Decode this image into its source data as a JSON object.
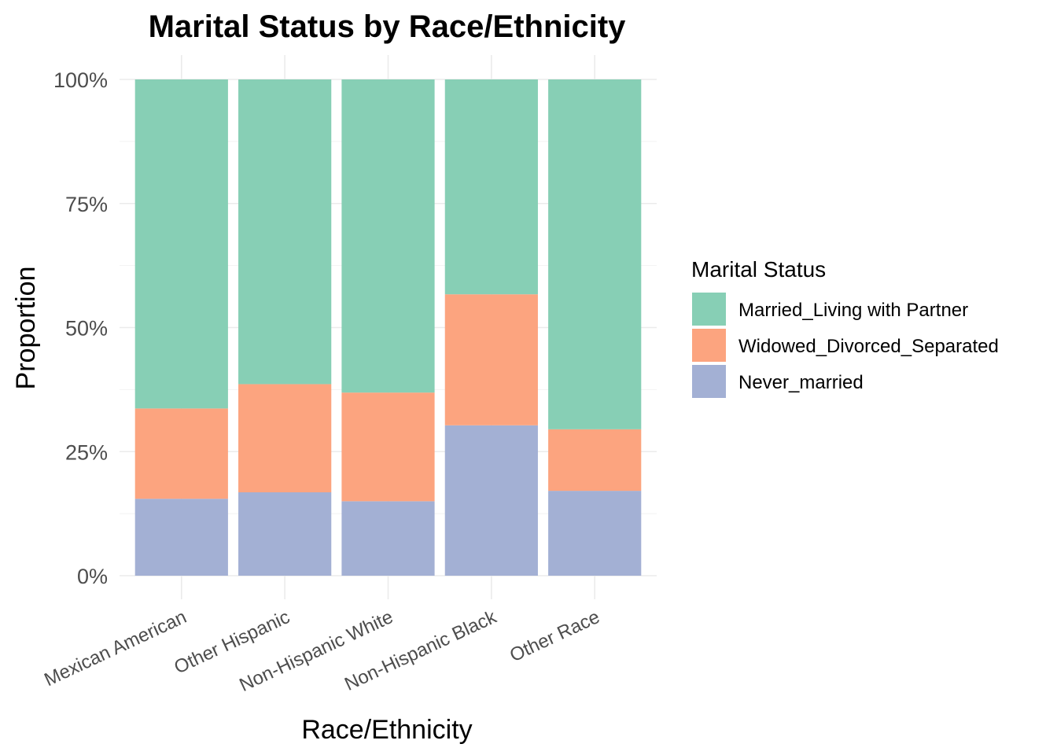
{
  "chart_data": {
    "type": "bar",
    "stacked": true,
    "title": "Marital Status by Race/Ethnicity",
    "xlabel": "Race/Ethnicity",
    "ylabel": "Proportion",
    "ylim": [
      0,
      1
    ],
    "yticks": [
      "0%",
      "25%",
      "50%",
      "75%",
      "100%"
    ],
    "grid": true,
    "legend_position": "right",
    "legend_title": "Marital Status",
    "categories": [
      "Mexican American",
      "Other Hispanic",
      "Non-Hispanic White",
      "Non-Hispanic Black",
      "Other Race"
    ],
    "series": [
      {
        "name": "Never_married",
        "color": "#a3b0d4",
        "values": [
          0.155,
          0.168,
          0.15,
          0.303,
          0.171
        ]
      },
      {
        "name": "Widowed_Divorced_Separated",
        "color": "#fca47f",
        "values": [
          0.182,
          0.218,
          0.219,
          0.264,
          0.124
        ]
      },
      {
        "name": "Married_Living with Partner",
        "color": "#87cfb5",
        "values": [
          0.663,
          0.614,
          0.631,
          0.433,
          0.705
        ]
      }
    ],
    "legend_order": [
      "Married_Living with Partner",
      "Widowed_Divorced_Separated",
      "Never_married"
    ]
  }
}
